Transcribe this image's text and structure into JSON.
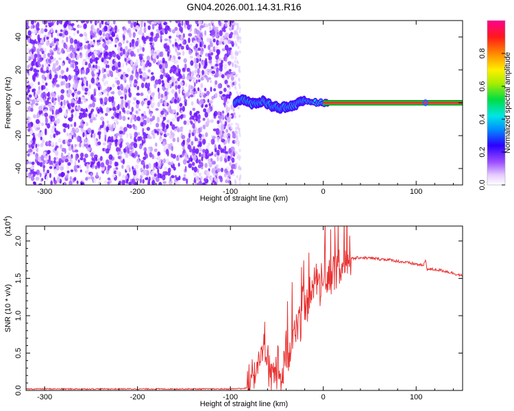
{
  "title": "GN04.2026.001.14.31.R16",
  "chart_data": [
    {
      "type": "heatmap",
      "xlabel": "Height of straight line (km)",
      "ylabel": "Frequency (Hz)",
      "xlim": [
        -320,
        150
      ],
      "ylim": [
        -50,
        50
      ],
      "x_ticks": [
        -300,
        -200,
        -100,
        0,
        100
      ],
      "x_tick_labels": [
        "-300",
        "-200",
        "-100",
        "0",
        "100"
      ],
      "y_ticks": [
        -40,
        -20,
        0,
        20,
        40
      ],
      "y_tick_labels": [
        "-40",
        "-20",
        "0",
        "20",
        "40"
      ],
      "colorbar": {
        "label": "Normalized spectral amplitude",
        "range": [
          0,
          1
        ],
        "ticks": [
          0.0,
          0.2,
          0.4,
          0.6,
          0.8
        ],
        "tick_labels": [
          "0.0",
          "0.2",
          "0.4",
          "0.6",
          "0.8"
        ]
      },
      "noise_region_km": [
        -320,
        -95
      ],
      "signal_trace": {
        "x": [
          -95,
          -85,
          -75,
          -65,
          -55,
          -45,
          -35,
          -25,
          -15,
          -5,
          0,
          10,
          50,
          100,
          110,
          150
        ],
        "freq_hz": [
          0,
          2,
          -1,
          1,
          -2,
          -3,
          -2,
          0,
          1,
          0,
          0,
          0,
          0,
          0,
          0,
          0
        ]
      }
    },
    {
      "type": "line",
      "xlabel": "Height of straight line (km)",
      "ylabel": "SNR (10 * v/v)",
      "y_scale_label_base": "(x10",
      "y_scale_label_exp": "4",
      "y_scale_label_end": ")",
      "xlim": [
        -320,
        150
      ],
      "ylim": [
        0,
        2.2
      ],
      "x_ticks": [
        -300,
        -200,
        -100,
        0,
        100
      ],
      "x_tick_labels": [
        "-300",
        "-200",
        "-100",
        "0",
        "100"
      ],
      "y_ticks": [
        0.0,
        0.5,
        1.0,
        1.5,
        2.0
      ],
      "y_tick_labels": [
        "0.0",
        "0.5",
        "1.0",
        "1.5",
        "2.0"
      ],
      "series": [
        {
          "color": "#e83030",
          "x": [
            -320,
            -100,
            -82,
            -75,
            -70,
            -65,
            -62,
            -58,
            -55,
            -50,
            -45,
            -40,
            -35,
            -30,
            -25,
            -20,
            -15,
            -10,
            -5,
            0,
            5,
            10,
            20,
            30,
            40,
            50,
            60,
            70,
            80,
            90,
            100,
            108,
            110,
            112,
            120,
            130,
            140,
            150
          ],
          "values": [
            0.02,
            0.02,
            0.03,
            0.15,
            0.35,
            0.55,
            0.45,
            0.3,
            0.2,
            0.25,
            0.2,
            0.4,
            0.6,
            0.8,
            1.0,
            1.1,
            1.2,
            1.35,
            1.4,
            1.45,
            1.45,
            1.55,
            1.68,
            1.76,
            1.78,
            1.77,
            1.76,
            1.75,
            1.73,
            1.71,
            1.69,
            1.67,
            1.75,
            1.62,
            1.62,
            1.6,
            1.57,
            1.53
          ]
        }
      ]
    }
  ]
}
